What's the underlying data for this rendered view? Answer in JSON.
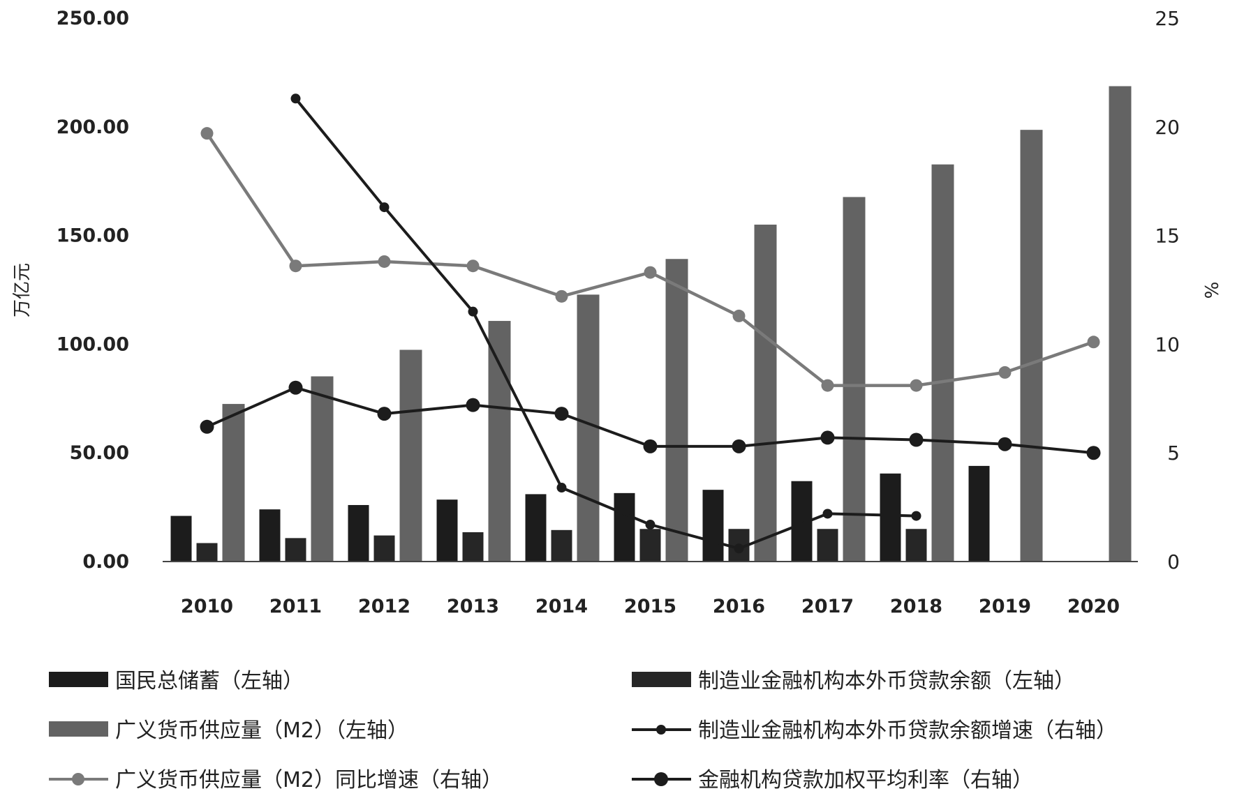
{
  "chart_data": {
    "type": "bar",
    "title": "",
    "categories": [
      "2010",
      "2011",
      "2012",
      "2013",
      "2014",
      "2015",
      "2016",
      "2017",
      "2018",
      "2019",
      "2020"
    ],
    "y_left": {
      "label": "万亿元",
      "range": [
        0,
        250
      ],
      "ticks": [
        "0.00",
        "50.00",
        "100.00",
        "150.00",
        "200.00",
        "250.00"
      ]
    },
    "y_right": {
      "label": "%",
      "range": [
        0,
        25
      ],
      "ticks": [
        "0",
        "5",
        "10",
        "15",
        "20",
        "25"
      ]
    },
    "grid": false,
    "legend_position": "bottom",
    "series": [
      {
        "name": "国民总储蓄（左轴）",
        "kind": "bar",
        "axis": "left",
        "color": "#1c1c1c",
        "values": [
          21,
          24,
          26,
          28.5,
          31,
          31.5,
          33,
          37,
          40.5,
          44,
          null
        ]
      },
      {
        "name": "制造业金融机构本外币贷款余额（左轴）",
        "kind": "bar",
        "axis": "left",
        "color": "#262626",
        "values": [
          8.5,
          10.8,
          12,
          13.5,
          14.5,
          15,
          15,
          15,
          15,
          null,
          null
        ]
      },
      {
        "name": "广义货币供应量（M2）（左轴）",
        "kind": "bar",
        "axis": "left",
        "color": "#636363",
        "values": [
          72.5,
          85.2,
          97.4,
          110.7,
          122.8,
          139.2,
          155,
          167.7,
          182.7,
          198.6,
          218.7
        ]
      },
      {
        "name": "制造业金融机构本外币贷款余额增速（右轴）",
        "kind": "line",
        "axis": "right",
        "color": "#1c1c1c",
        "marker": "small",
        "values": [
          null,
          21.3,
          16.3,
          11.5,
          3.4,
          1.7,
          0.6,
          2.2,
          2.1,
          null,
          null
        ]
      },
      {
        "name": "广义货币供应量（M2）同比增速（右轴）",
        "kind": "line",
        "axis": "right",
        "color": "#7a7a7a",
        "marker": "medium",
        "values": [
          19.7,
          13.6,
          13.8,
          13.6,
          12.2,
          13.3,
          11.3,
          8.1,
          8.1,
          8.7,
          10.1
        ]
      },
      {
        "name": "金融机构贷款加权平均利率（右轴）",
        "kind": "line",
        "axis": "right",
        "color": "#1c1c1c",
        "marker": "large",
        "values": [
          6.2,
          8.0,
          6.8,
          7.2,
          6.8,
          5.3,
          5.3,
          5.7,
          5.6,
          5.4,
          5.0
        ]
      }
    ]
  }
}
